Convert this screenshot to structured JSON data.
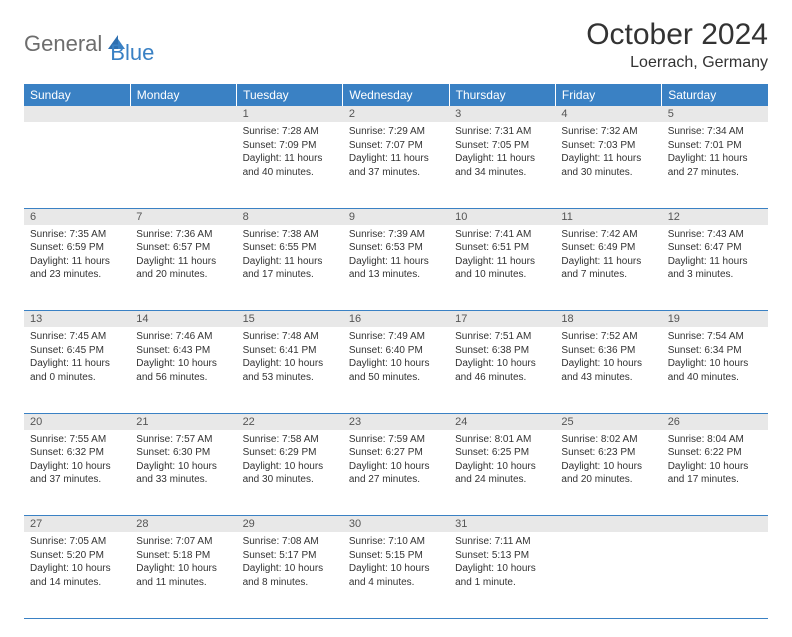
{
  "brand": {
    "part1": "General",
    "part2": "Blue"
  },
  "title": "October 2024",
  "location": "Loerrach, Germany",
  "colors": {
    "header_bg": "#3a81c4",
    "header_text": "#ffffff",
    "daynum_bg": "#e8e8e8",
    "border": "#3a81c4",
    "logo_gray": "#6d6d6d",
    "logo_blue": "#3a81c4"
  },
  "weekdays": [
    "Sunday",
    "Monday",
    "Tuesday",
    "Wednesday",
    "Thursday",
    "Friday",
    "Saturday"
  ],
  "weeks": [
    {
      "nums": [
        "",
        "",
        "1",
        "2",
        "3",
        "4",
        "5"
      ],
      "cells": [
        null,
        null,
        {
          "sunrise": "Sunrise: 7:28 AM",
          "sunset": "Sunset: 7:09 PM",
          "daylight": "Daylight: 11 hours and 40 minutes."
        },
        {
          "sunrise": "Sunrise: 7:29 AM",
          "sunset": "Sunset: 7:07 PM",
          "daylight": "Daylight: 11 hours and 37 minutes."
        },
        {
          "sunrise": "Sunrise: 7:31 AM",
          "sunset": "Sunset: 7:05 PM",
          "daylight": "Daylight: 11 hours and 34 minutes."
        },
        {
          "sunrise": "Sunrise: 7:32 AM",
          "sunset": "Sunset: 7:03 PM",
          "daylight": "Daylight: 11 hours and 30 minutes."
        },
        {
          "sunrise": "Sunrise: 7:34 AM",
          "sunset": "Sunset: 7:01 PM",
          "daylight": "Daylight: 11 hours and 27 minutes."
        }
      ]
    },
    {
      "nums": [
        "6",
        "7",
        "8",
        "9",
        "10",
        "11",
        "12"
      ],
      "cells": [
        {
          "sunrise": "Sunrise: 7:35 AM",
          "sunset": "Sunset: 6:59 PM",
          "daylight": "Daylight: 11 hours and 23 minutes."
        },
        {
          "sunrise": "Sunrise: 7:36 AM",
          "sunset": "Sunset: 6:57 PM",
          "daylight": "Daylight: 11 hours and 20 minutes."
        },
        {
          "sunrise": "Sunrise: 7:38 AM",
          "sunset": "Sunset: 6:55 PM",
          "daylight": "Daylight: 11 hours and 17 minutes."
        },
        {
          "sunrise": "Sunrise: 7:39 AM",
          "sunset": "Sunset: 6:53 PM",
          "daylight": "Daylight: 11 hours and 13 minutes."
        },
        {
          "sunrise": "Sunrise: 7:41 AM",
          "sunset": "Sunset: 6:51 PM",
          "daylight": "Daylight: 11 hours and 10 minutes."
        },
        {
          "sunrise": "Sunrise: 7:42 AM",
          "sunset": "Sunset: 6:49 PM",
          "daylight": "Daylight: 11 hours and 7 minutes."
        },
        {
          "sunrise": "Sunrise: 7:43 AM",
          "sunset": "Sunset: 6:47 PM",
          "daylight": "Daylight: 11 hours and 3 minutes."
        }
      ]
    },
    {
      "nums": [
        "13",
        "14",
        "15",
        "16",
        "17",
        "18",
        "19"
      ],
      "cells": [
        {
          "sunrise": "Sunrise: 7:45 AM",
          "sunset": "Sunset: 6:45 PM",
          "daylight": "Daylight: 11 hours and 0 minutes."
        },
        {
          "sunrise": "Sunrise: 7:46 AM",
          "sunset": "Sunset: 6:43 PM",
          "daylight": "Daylight: 10 hours and 56 minutes."
        },
        {
          "sunrise": "Sunrise: 7:48 AM",
          "sunset": "Sunset: 6:41 PM",
          "daylight": "Daylight: 10 hours and 53 minutes."
        },
        {
          "sunrise": "Sunrise: 7:49 AM",
          "sunset": "Sunset: 6:40 PM",
          "daylight": "Daylight: 10 hours and 50 minutes."
        },
        {
          "sunrise": "Sunrise: 7:51 AM",
          "sunset": "Sunset: 6:38 PM",
          "daylight": "Daylight: 10 hours and 46 minutes."
        },
        {
          "sunrise": "Sunrise: 7:52 AM",
          "sunset": "Sunset: 6:36 PM",
          "daylight": "Daylight: 10 hours and 43 minutes."
        },
        {
          "sunrise": "Sunrise: 7:54 AM",
          "sunset": "Sunset: 6:34 PM",
          "daylight": "Daylight: 10 hours and 40 minutes."
        }
      ]
    },
    {
      "nums": [
        "20",
        "21",
        "22",
        "23",
        "24",
        "25",
        "26"
      ],
      "cells": [
        {
          "sunrise": "Sunrise: 7:55 AM",
          "sunset": "Sunset: 6:32 PM",
          "daylight": "Daylight: 10 hours and 37 minutes."
        },
        {
          "sunrise": "Sunrise: 7:57 AM",
          "sunset": "Sunset: 6:30 PM",
          "daylight": "Daylight: 10 hours and 33 minutes."
        },
        {
          "sunrise": "Sunrise: 7:58 AM",
          "sunset": "Sunset: 6:29 PM",
          "daylight": "Daylight: 10 hours and 30 minutes."
        },
        {
          "sunrise": "Sunrise: 7:59 AM",
          "sunset": "Sunset: 6:27 PM",
          "daylight": "Daylight: 10 hours and 27 minutes."
        },
        {
          "sunrise": "Sunrise: 8:01 AM",
          "sunset": "Sunset: 6:25 PM",
          "daylight": "Daylight: 10 hours and 24 minutes."
        },
        {
          "sunrise": "Sunrise: 8:02 AM",
          "sunset": "Sunset: 6:23 PM",
          "daylight": "Daylight: 10 hours and 20 minutes."
        },
        {
          "sunrise": "Sunrise: 8:04 AM",
          "sunset": "Sunset: 6:22 PM",
          "daylight": "Daylight: 10 hours and 17 minutes."
        }
      ]
    },
    {
      "nums": [
        "27",
        "28",
        "29",
        "30",
        "31",
        "",
        ""
      ],
      "cells": [
        {
          "sunrise": "Sunrise: 7:05 AM",
          "sunset": "Sunset: 5:20 PM",
          "daylight": "Daylight: 10 hours and 14 minutes."
        },
        {
          "sunrise": "Sunrise: 7:07 AM",
          "sunset": "Sunset: 5:18 PM",
          "daylight": "Daylight: 10 hours and 11 minutes."
        },
        {
          "sunrise": "Sunrise: 7:08 AM",
          "sunset": "Sunset: 5:17 PM",
          "daylight": "Daylight: 10 hours and 8 minutes."
        },
        {
          "sunrise": "Sunrise: 7:10 AM",
          "sunset": "Sunset: 5:15 PM",
          "daylight": "Daylight: 10 hours and 4 minutes."
        },
        {
          "sunrise": "Sunrise: 7:11 AM",
          "sunset": "Sunset: 5:13 PM",
          "daylight": "Daylight: 10 hours and 1 minute."
        },
        null,
        null
      ]
    }
  ]
}
